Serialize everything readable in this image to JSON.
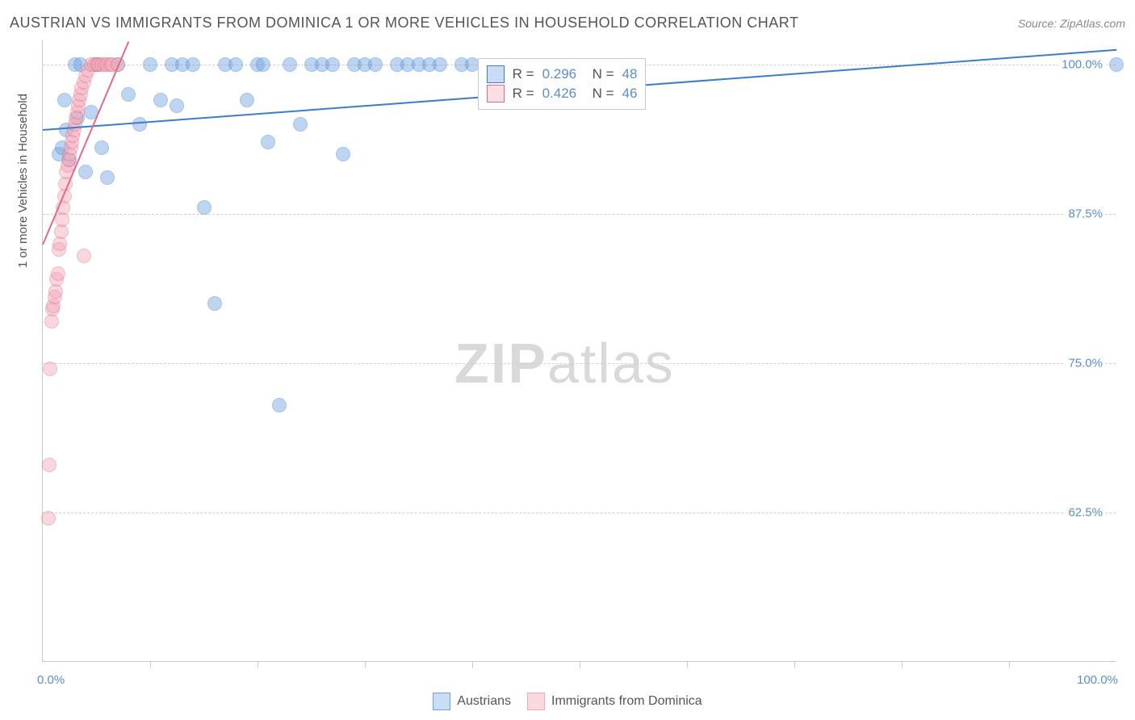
{
  "title": "AUSTRIAN VS IMMIGRANTS FROM DOMINICA 1 OR MORE VEHICLES IN HOUSEHOLD CORRELATION CHART",
  "source": "Source: ZipAtlas.com",
  "yaxis_title": "1 or more Vehicles in Household",
  "watermark": {
    "bold": "ZIP",
    "light": "atlas"
  },
  "chart": {
    "type": "scatter",
    "background_color": "#ffffff",
    "grid_color": "#d0d0d0",
    "axis_color": "#c8c8c8",
    "text_color": "#555555",
    "value_color": "#5b8dd6",
    "xlim": [
      0,
      100
    ],
    "ylim": [
      50,
      102
    ],
    "yticks": [
      {
        "v": 62.5,
        "label": "62.5%"
      },
      {
        "v": 75.0,
        "label": "75.0%"
      },
      {
        "v": 87.5,
        "label": "87.5%"
      },
      {
        "v": 100.0,
        "label": "100.0%"
      }
    ],
    "xticks_minor": [
      10,
      20,
      30,
      40,
      50,
      60,
      70,
      80,
      90
    ],
    "xlabels": [
      {
        "v": 0,
        "label": "0.0%"
      },
      {
        "v": 100,
        "label": "100.0%"
      }
    ],
    "marker_radius": 9,
    "marker_opacity": 0.45,
    "marker_stroke_opacity": 0.8,
    "series": [
      {
        "name": "Austrians",
        "color": "#6fa3e0",
        "stroke": "#3d7cc9",
        "R": "0.296",
        "N": "48",
        "trend": {
          "x1": 0,
          "y1": 94.6,
          "x2": 100,
          "y2": 101.3
        },
        "points": [
          [
            1.5,
            92.5
          ],
          [
            1.8,
            93.0
          ],
          [
            2.0,
            97.0
          ],
          [
            2.2,
            94.5
          ],
          [
            2.5,
            92.0
          ],
          [
            3.0,
            100.0
          ],
          [
            3.2,
            95.5
          ],
          [
            3.5,
            100.0
          ],
          [
            4.0,
            91.0
          ],
          [
            4.5,
            96.0
          ],
          [
            5.0,
            100.0
          ],
          [
            5.5,
            93.0
          ],
          [
            6.0,
            90.5
          ],
          [
            7.0,
            100.0
          ],
          [
            8.0,
            97.5
          ],
          [
            9.0,
            95.0
          ],
          [
            10.0,
            100.0
          ],
          [
            11.0,
            97.0
          ],
          [
            12.0,
            100.0
          ],
          [
            12.5,
            96.5
          ],
          [
            13.0,
            100.0
          ],
          [
            14.0,
            100.0
          ],
          [
            15.0,
            88.0
          ],
          [
            16.0,
            80.0
          ],
          [
            17.0,
            100.0
          ],
          [
            18.0,
            100.0
          ],
          [
            19.0,
            97.0
          ],
          [
            20.0,
            100.0
          ],
          [
            20.5,
            100.0
          ],
          [
            21.0,
            93.5
          ],
          [
            22.0,
            71.5
          ],
          [
            23.0,
            100.0
          ],
          [
            24.0,
            95.0
          ],
          [
            25.0,
            100.0
          ],
          [
            26.0,
            100.0
          ],
          [
            27.0,
            100.0
          ],
          [
            28.0,
            92.5
          ],
          [
            29.0,
            100.0
          ],
          [
            30.0,
            100.0
          ],
          [
            31.0,
            100.0
          ],
          [
            33.0,
            100.0
          ],
          [
            34.0,
            100.0
          ],
          [
            35.0,
            100.0
          ],
          [
            36.0,
            100.0
          ],
          [
            37.0,
            100.0
          ],
          [
            39.0,
            100.0
          ],
          [
            40.0,
            100.0
          ],
          [
            100.0,
            100.0
          ]
        ]
      },
      {
        "name": "Immigrants from Dominica",
        "color": "#f2a8b8",
        "stroke": "#e06b87",
        "R": "0.426",
        "N": "46",
        "trend": {
          "x1": 0,
          "y1": 85.0,
          "x2": 8.0,
          "y2": 102.0
        },
        "points": [
          [
            0.5,
            62.0
          ],
          [
            0.6,
            66.5
          ],
          [
            0.7,
            74.5
          ],
          [
            0.8,
            78.5
          ],
          [
            0.9,
            79.5
          ],
          [
            1.0,
            79.8
          ],
          [
            1.1,
            80.5
          ],
          [
            1.2,
            81.0
          ],
          [
            1.3,
            82.0
          ],
          [
            1.4,
            82.5
          ],
          [
            1.5,
            84.5
          ],
          [
            1.6,
            85.0
          ],
          [
            1.7,
            86.0
          ],
          [
            1.8,
            87.0
          ],
          [
            1.9,
            88.0
          ],
          [
            2.0,
            89.0
          ],
          [
            2.1,
            90.0
          ],
          [
            2.2,
            91.0
          ],
          [
            2.3,
            91.5
          ],
          [
            2.4,
            92.0
          ],
          [
            2.5,
            92.5
          ],
          [
            2.6,
            93.0
          ],
          [
            2.7,
            93.5
          ],
          [
            2.8,
            94.0
          ],
          [
            2.9,
            94.5
          ],
          [
            3.0,
            95.0
          ],
          [
            3.1,
            95.5
          ],
          [
            3.2,
            96.0
          ],
          [
            3.3,
            96.5
          ],
          [
            3.4,
            97.0
          ],
          [
            3.5,
            97.5
          ],
          [
            3.6,
            98.0
          ],
          [
            3.8,
            98.5
          ],
          [
            4.0,
            99.0
          ],
          [
            4.2,
            99.5
          ],
          [
            4.5,
            100.0
          ],
          [
            4.8,
            100.0
          ],
          [
            5.0,
            100.0
          ],
          [
            5.2,
            100.0
          ],
          [
            5.5,
            100.0
          ],
          [
            5.8,
            100.0
          ],
          [
            6.0,
            100.0
          ],
          [
            6.3,
            100.0
          ],
          [
            6.5,
            100.0
          ],
          [
            7.0,
            100.0
          ],
          [
            3.8,
            84.0
          ]
        ]
      }
    ],
    "stats_box": {
      "left_pct": 40.5,
      "top_y": 100.5
    }
  },
  "legend": {
    "items": [
      {
        "label": "Austrians",
        "fill": "#c9ddf4",
        "stroke": "#6fa3e0"
      },
      {
        "label": "Immigrants from Dominica",
        "fill": "#fbd7df",
        "stroke": "#f2a8b8"
      }
    ]
  }
}
